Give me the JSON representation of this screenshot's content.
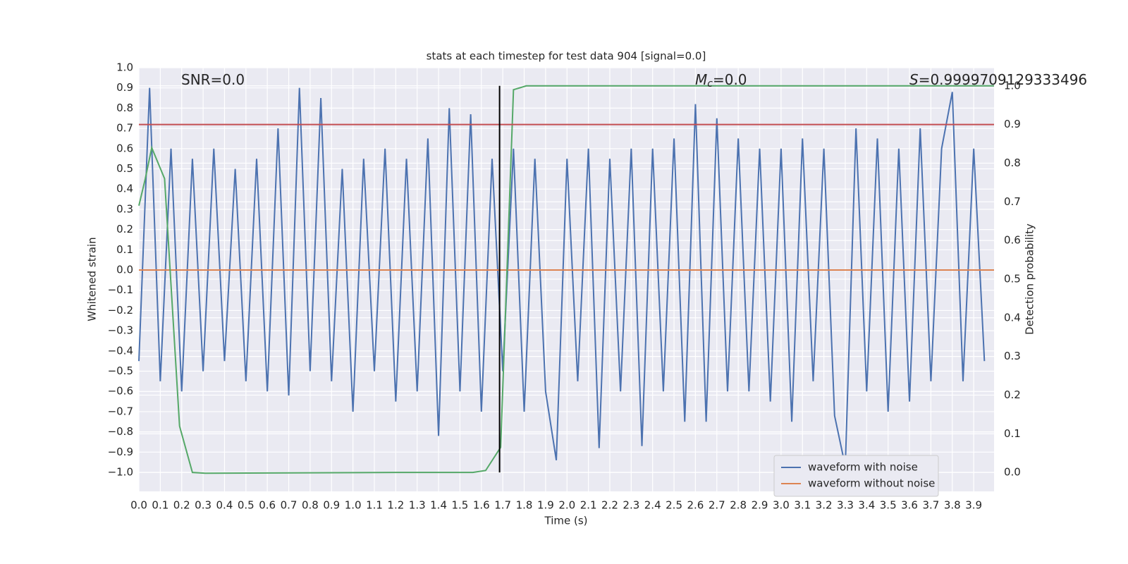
{
  "chart_data": {
    "type": "line",
    "title": "stats at each timestep for test data 904 [signal=0.0]",
    "xlabel": "Time (s)",
    "ylabel": "Whitened strain",
    "y2label": "Detection probability",
    "xlim": [
      0,
      3.995
    ],
    "ylim": [
      -1.094,
      1.0
    ],
    "y2lim": [
      -0.049,
      1.047
    ],
    "grid": true,
    "legend": "lower right",
    "xticks": [
      {
        "value": 0,
        "label": "0.0"
      },
      {
        "value": 0.1,
        "label": "0.1"
      },
      {
        "value": 0.2,
        "label": "0.2"
      },
      {
        "value": 0.3,
        "label": "0.3"
      },
      {
        "value": 0.4,
        "label": "0.4"
      },
      {
        "value": 0.5,
        "label": "0.5"
      },
      {
        "value": 0.6,
        "label": "0.6"
      },
      {
        "value": 0.7,
        "label": "0.7"
      },
      {
        "value": 0.8,
        "label": "0.8"
      },
      {
        "value": 0.9,
        "label": "0.9"
      },
      {
        "value": 1,
        "label": "1.0"
      },
      {
        "value": 1.1,
        "label": "1.1"
      },
      {
        "value": 1.2,
        "label": "1.2"
      },
      {
        "value": 1.3,
        "label": "1.3"
      },
      {
        "value": 1.4,
        "label": "1.4"
      },
      {
        "value": 1.5,
        "label": "1.5"
      },
      {
        "value": 1.6,
        "label": "1.6"
      },
      {
        "value": 1.7,
        "label": "1.7"
      },
      {
        "value": 1.8,
        "label": "1.8"
      },
      {
        "value": 1.9,
        "label": "1.9"
      },
      {
        "value": 2,
        "label": "2.0"
      },
      {
        "value": 2.1,
        "label": "2.1"
      },
      {
        "value": 2.2,
        "label": "2.2"
      },
      {
        "value": 2.3,
        "label": "2.3"
      },
      {
        "value": 2.4,
        "label": "2.4"
      },
      {
        "value": 2.5,
        "label": "2.5"
      },
      {
        "value": 2.6,
        "label": "2.6"
      },
      {
        "value": 2.7,
        "label": "2.7"
      },
      {
        "value": 2.8,
        "label": "2.8"
      },
      {
        "value": 2.9,
        "label": "2.9"
      },
      {
        "value": 3,
        "label": "3.0"
      },
      {
        "value": 3.1,
        "label": "3.1"
      },
      {
        "value": 3.2,
        "label": "3.2"
      },
      {
        "value": 3.3,
        "label": "3.3"
      },
      {
        "value": 3.4,
        "label": "3.4"
      },
      {
        "value": 3.5,
        "label": "3.5"
      },
      {
        "value": 3.6,
        "label": "3.6"
      },
      {
        "value": 3.7,
        "label": "3.7"
      },
      {
        "value": 3.8,
        "label": "3.8"
      },
      {
        "value": 3.9,
        "label": "3.9"
      }
    ],
    "yticks": [
      {
        "value": -1,
        "label": "−1.0"
      },
      {
        "value": -0.9,
        "label": "−0.9"
      },
      {
        "value": -0.8,
        "label": "−0.8"
      },
      {
        "value": -0.7,
        "label": "−0.7"
      },
      {
        "value": -0.6,
        "label": "−0.6"
      },
      {
        "value": -0.5,
        "label": "−0.5"
      },
      {
        "value": -0.4,
        "label": "−0.4"
      },
      {
        "value": -0.3,
        "label": "−0.3"
      },
      {
        "value": -0.2,
        "label": "−0.2"
      },
      {
        "value": -0.1,
        "label": "−0.1"
      },
      {
        "value": 0,
        "label": "0.0"
      },
      {
        "value": 0.1,
        "label": "0.1"
      },
      {
        "value": 0.2,
        "label": "0.2"
      },
      {
        "value": 0.3,
        "label": "0.3"
      },
      {
        "value": 0.4,
        "label": "0.4"
      },
      {
        "value": 0.5,
        "label": "0.5"
      },
      {
        "value": 0.6,
        "label": "0.6"
      },
      {
        "value": 0.7,
        "label": "0.7"
      },
      {
        "value": 0.8,
        "label": "0.8"
      },
      {
        "value": 0.9,
        "label": "0.9"
      },
      {
        "value": 1,
        "label": "1.0"
      }
    ],
    "y2ticks": [
      {
        "value": 0,
        "label": "0.0"
      },
      {
        "value": 0.1,
        "label": "0.1"
      },
      {
        "value": 0.2,
        "label": "0.2"
      },
      {
        "value": 0.3,
        "label": "0.3"
      },
      {
        "value": 0.4,
        "label": "0.4"
      },
      {
        "value": 0.5,
        "label": "0.5"
      },
      {
        "value": 0.6,
        "label": "0.6"
      },
      {
        "value": 0.7,
        "label": "0.7"
      },
      {
        "value": 0.8,
        "label": "0.8"
      },
      {
        "value": 0.9,
        "label": "0.9"
      },
      {
        "value": 1,
        "label": "1.0"
      }
    ],
    "series": [
      {
        "name": "waveform with noise",
        "color": "#4c72b0",
        "x": [
          0,
          0.05,
          0.1,
          0.15,
          0.2,
          0.25,
          0.3,
          0.35,
          0.4,
          0.45,
          0.5,
          0.55,
          0.6,
          0.65,
          0.7,
          0.75,
          0.8,
          0.85,
          0.9,
          0.95,
          1,
          1.05,
          1.1,
          1.15,
          1.2,
          1.25,
          1.3,
          1.35,
          1.4,
          1.45,
          1.5,
          1.55,
          1.6,
          1.65,
          1.7,
          1.75,
          1.8,
          1.85,
          1.9,
          1.95,
          2,
          2.05,
          2.1,
          2.15,
          2.2,
          2.25,
          2.3,
          2.35,
          2.4,
          2.45,
          2.5,
          2.55,
          2.6,
          2.65,
          2.7,
          2.75,
          2.8,
          2.85,
          2.9,
          2.95,
          3,
          3.05,
          3.1,
          3.15,
          3.2,
          3.25,
          3.3,
          3.35,
          3.4,
          3.45,
          3.5,
          3.55,
          3.6,
          3.65,
          3.7,
          3.75,
          3.8,
          3.85,
          3.9,
          3.95
        ],
        "values": [
          -0.45,
          0.9,
          -0.55,
          0.6,
          -0.6,
          0.55,
          -0.5,
          0.6,
          -0.45,
          0.5,
          -0.55,
          0.55,
          -0.6,
          0.7,
          -0.62,
          0.9,
          -0.5,
          0.85,
          -0.55,
          0.5,
          -0.7,
          0.55,
          -0.5,
          0.6,
          -0.65,
          0.55,
          -0.6,
          0.65,
          -0.82,
          0.8,
          -0.6,
          0.77,
          -0.7,
          0.55,
          -0.5,
          0.6,
          -0.7,
          0.55,
          -0.6,
          -0.94,
          0.55,
          -0.55,
          0.6,
          -0.88,
          0.55,
          -0.6,
          0.6,
          -0.87,
          0.6,
          -0.6,
          0.65,
          -0.75,
          0.82,
          -0.75,
          0.75,
          -0.6,
          0.65,
          -0.6,
          0.6,
          -0.65,
          0.6,
          -0.75,
          0.65,
          -0.55,
          0.6,
          -0.72,
          -0.97,
          0.7,
          -0.6,
          0.65,
          -0.7,
          0.6,
          -0.65,
          0.7,
          -0.55,
          0.6,
          0.88,
          -0.55,
          0.6,
          -0.45
        ]
      },
      {
        "name": "waveform without noise",
        "color": "#dd8452",
        "x": [
          0,
          3.995
        ],
        "values": [
          0,
          0
        ]
      },
      {
        "color": "#55a868",
        "axis": "y2",
        "x": [
          0,
          0.03,
          0.06,
          0.12,
          0.19,
          0.25,
          0.31,
          1.2,
          1.56,
          1.62,
          1.69,
          1.75,
          1.81,
          3.995
        ],
        "values": [
          0.69,
          0.76,
          0.84,
          0.76,
          0.12,
          0.0,
          -0.002,
          0.0,
          0.0,
          0.005,
          0.065,
          0.99,
          1.0,
          1.0
        ]
      }
    ],
    "hline": {
      "value": 0.9,
      "axis": "y2",
      "color": "#c44e52"
    },
    "vline": {
      "x": 1.685,
      "ymin": 0,
      "ymax": 1,
      "axis": "y2",
      "color": "#000000"
    },
    "annotations": [
      {
        "text": "SNR=0.0"
      },
      {
        "symbol": "M",
        "subscript": "c",
        "text": "=0.0"
      },
      {
        "symbol": "S",
        "text": "=0.9999709129333496"
      }
    ]
  }
}
